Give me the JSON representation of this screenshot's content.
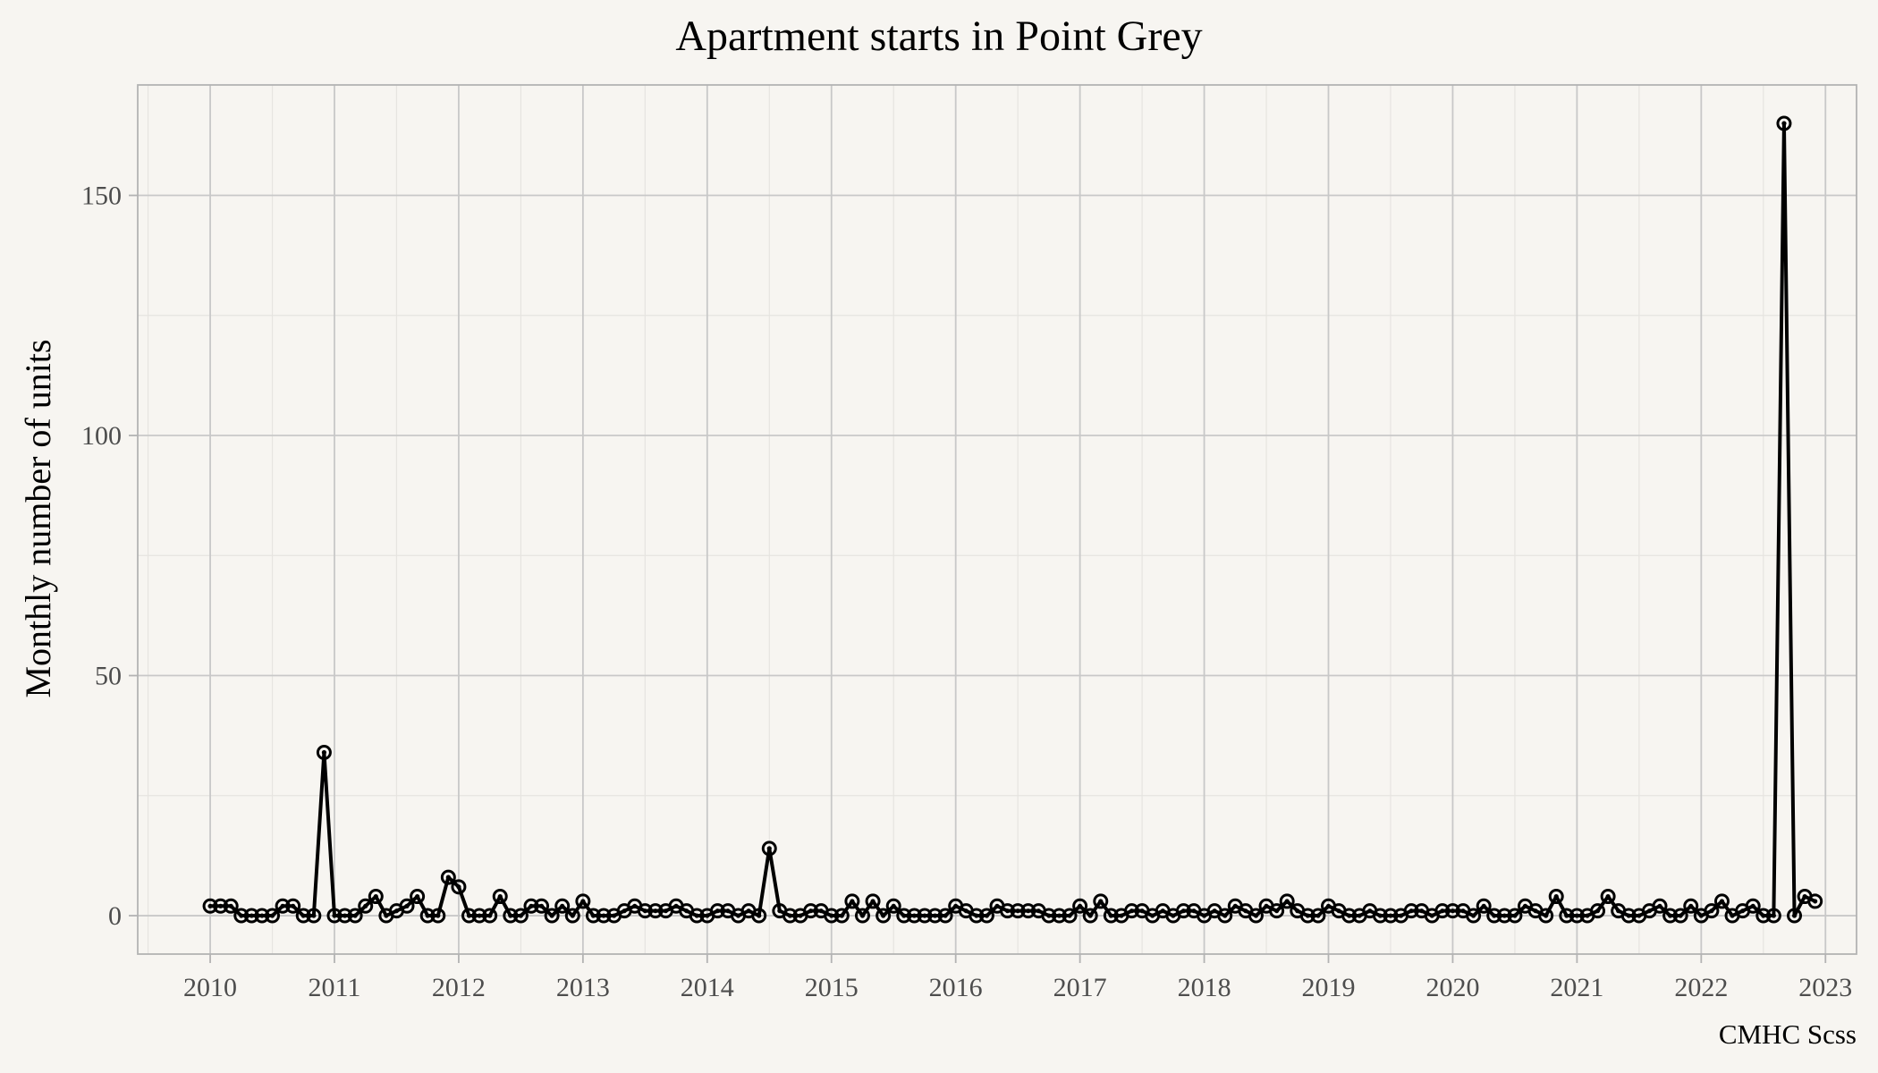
{
  "chart_data": {
    "type": "line",
    "title": "Apartment starts in Point Grey",
    "xlabel": "",
    "ylabel": "Monthly number of units",
    "caption": "CMHC Scss",
    "x_ticks": [
      "2010",
      "2011",
      "2012",
      "2013",
      "2014",
      "2015",
      "2016",
      "2017",
      "2018",
      "2019",
      "2020",
      "2021",
      "2022",
      "2023"
    ],
    "y_ticks": [
      0,
      50,
      100,
      150
    ],
    "xlim": [
      "2009-06",
      "2023-04"
    ],
    "ylim": [
      -8,
      173
    ],
    "grid": true,
    "legend": "none",
    "series": [
      {
        "x_start": "2010-01",
        "frequency": "monthly",
        "values": [
          2,
          2,
          2,
          0,
          0,
          0,
          0,
          2,
          2,
          0,
          0,
          34,
          0,
          0,
          0,
          2,
          4,
          0,
          1,
          2,
          4,
          0,
          0,
          8,
          6,
          0,
          0,
          0,
          4,
          0,
          0,
          2,
          2,
          0,
          2,
          0,
          3,
          0,
          0,
          0,
          1,
          2,
          1,
          1,
          1,
          2,
          1,
          0,
          0,
          1,
          1,
          0,
          1,
          0,
          14,
          1,
          0,
          0,
          1,
          1,
          0,
          0,
          3,
          0,
          3,
          0,
          2,
          0,
          0,
          0,
          0,
          0,
          2,
          1,
          0,
          0,
          2,
          1,
          1,
          1,
          1,
          0,
          0,
          0,
          2,
          0,
          3,
          0,
          0,
          1,
          1,
          0,
          1,
          0,
          1,
          1,
          0,
          1,
          0,
          2,
          1,
          0,
          2,
          1,
          3,
          1,
          0,
          0,
          2,
          1,
          0,
          0,
          1,
          0,
          0,
          0,
          1,
          1,
          0,
          1,
          1,
          1,
          0,
          2,
          0,
          0,
          0,
          2,
          1,
          0,
          4,
          0,
          0,
          0,
          1,
          4,
          1,
          0,
          0,
          1,
          2,
          0,
          0,
          2,
          0,
          1,
          3,
          0,
          1,
          2,
          0,
          0,
          165,
          0,
          4,
          3
        ]
      }
    ]
  }
}
